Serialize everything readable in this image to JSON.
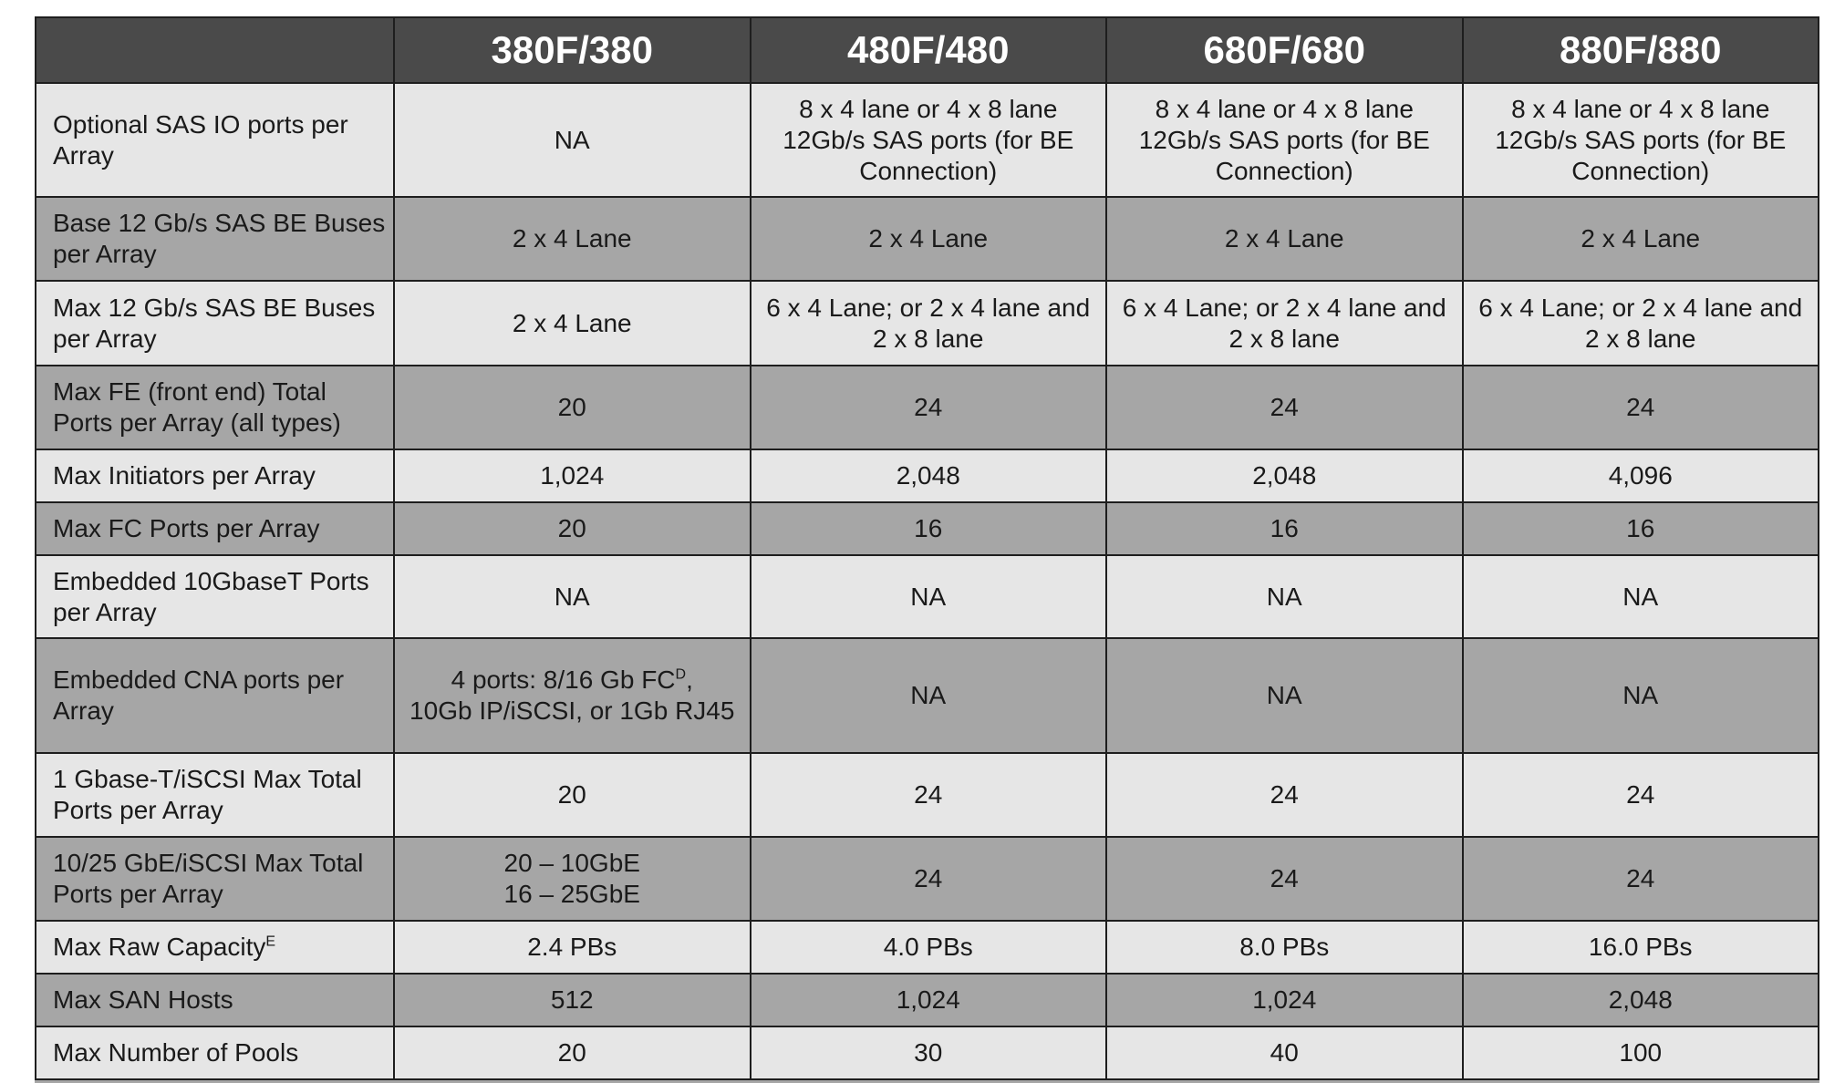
{
  "header": [
    "",
    "380F/380",
    "480F/480",
    "680F/680",
    "880F/880"
  ],
  "rows": [
    {
      "label": "Optional SAS IO ports per Array",
      "values": [
        "NA",
        "8 x 4 lane or 4 x 8 lane 12Gb/s SAS ports (for BE Connection)",
        "8 x 4 lane or 4 x 8 lane 12Gb/s SAS ports (for BE Connection)",
        "8 x 4 lane or 4 x 8 lane 12Gb/s SAS ports (for BE Connection)"
      ],
      "shade": "light"
    },
    {
      "label": "Base 12 Gb/s SAS BE Buses per Array",
      "values": [
        "2 x 4 Lane",
        "2 x 4 Lane",
        "2 x 4 Lane",
        "2 x 4 Lane"
      ],
      "shade": "dark"
    },
    {
      "label": "Max 12 Gb/s SAS BE Buses per Array",
      "values": [
        "2 x 4 Lane",
        "6 x 4 Lane; or 2 x 4 lane and 2 x 8 lane",
        "6 x 4 Lane; or 2 x 4 lane and 2 x 8 lane",
        "6 x 4 Lane; or 2 x 4 lane and 2 x 8 lane"
      ],
      "shade": "light"
    },
    {
      "label": "Max FE (front end) Total Ports per Array (all types)",
      "values": [
        "20",
        "24",
        "24",
        "24"
      ],
      "shade": "dark"
    },
    {
      "label": "Max Initiators per Array",
      "values": [
        "1,024",
        "2,048",
        "2,048",
        "4,096"
      ],
      "shade": "light"
    },
    {
      "label": "Max FC Ports per Array",
      "values": [
        "20",
        "16",
        "16",
        "16"
      ],
      "shade": "dark"
    },
    {
      "label": "Embedded 10GbaseT Ports per Array",
      "values": [
        "NA",
        "NA",
        "NA",
        "NA"
      ],
      "shade": "light"
    },
    {
      "label": "Embedded CNA ports per Array",
      "values": [
        "4 ports: 8/16 Gb FC",
        "NA",
        "NA",
        "NA"
      ],
      "sup0": "D",
      "value0_rest": "10Gb IP/iSCSI, or 1Gb RJ45",
      "shade": "dark"
    },
    {
      "label": "1 Gbase-T/iSCSI Max Total Ports per Array",
      "values": [
        "20",
        "24",
        "24",
        "24"
      ],
      "shade": "light"
    },
    {
      "label": "10/25 GbE/iSCSI Max Total Ports per Array",
      "values": [
        "20 – 10GbE",
        "24",
        "24",
        "24"
      ],
      "value0_rest": "16 – 25GbE",
      "shade": "dark"
    },
    {
      "label": "Max Raw Capacity",
      "label_sup": "E",
      "values": [
        "2.4 PBs",
        "4.0 PBs",
        "8.0 PBs",
        "16.0 PBs"
      ],
      "shade": "light"
    },
    {
      "label": "Max SAN Hosts",
      "values": [
        "512",
        "1,024",
        "1,024",
        "2,048"
      ],
      "shade": "dark"
    },
    {
      "label": "Max Number of Pools",
      "values": [
        "20",
        "30",
        "40",
        "100"
      ],
      "shade": "light"
    }
  ],
  "colors": {
    "header_bg": "#4a4a4a",
    "row_light": "#e6e6e6",
    "row_dark": "#a6a6a6"
  }
}
